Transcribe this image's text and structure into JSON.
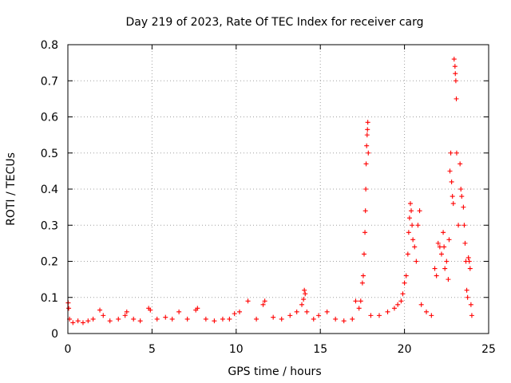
{
  "chart_data": {
    "type": "scatter",
    "title": "Day 219 of 2023, Rate Of TEC Index for receiver carg",
    "xlabel": "GPS time / hours",
    "ylabel": "ROTI / TECUs",
    "xlim": [
      0,
      25
    ],
    "ylim": [
      0,
      0.8
    ],
    "xticks": [
      0,
      5,
      10,
      15,
      20,
      25
    ],
    "yticks": [
      0,
      0.1,
      0.2,
      0.3,
      0.4,
      0.5,
      0.6,
      0.7,
      0.8
    ],
    "grid": true,
    "marker": "+",
    "color": "#ff0000",
    "series": [
      {
        "points": [
          [
            0.02,
            0.085
          ],
          [
            0.05,
            0.07
          ],
          [
            0.1,
            0.04
          ],
          [
            0.3,
            0.03
          ],
          [
            0.6,
            0.035
          ],
          [
            0.9,
            0.03
          ],
          [
            1.2,
            0.035
          ],
          [
            1.5,
            0.04
          ],
          [
            1.9,
            0.065
          ],
          [
            2.1,
            0.05
          ],
          [
            2.5,
            0.035
          ],
          [
            3.0,
            0.04
          ],
          [
            3.4,
            0.05
          ],
          [
            3.5,
            0.06
          ],
          [
            3.9,
            0.04
          ],
          [
            4.3,
            0.035
          ],
          [
            4.8,
            0.07
          ],
          [
            4.9,
            0.065
          ],
          [
            5.3,
            0.04
          ],
          [
            5.8,
            0.045
          ],
          [
            6.2,
            0.04
          ],
          [
            6.6,
            0.06
          ],
          [
            7.1,
            0.04
          ],
          [
            7.6,
            0.065
          ],
          [
            7.7,
            0.07
          ],
          [
            8.2,
            0.04
          ],
          [
            8.7,
            0.035
          ],
          [
            9.2,
            0.04
          ],
          [
            9.6,
            0.04
          ],
          [
            9.9,
            0.055
          ],
          [
            10.2,
            0.06
          ],
          [
            10.7,
            0.09
          ],
          [
            11.2,
            0.04
          ],
          [
            11.6,
            0.08
          ],
          [
            11.7,
            0.09
          ],
          [
            12.2,
            0.045
          ],
          [
            12.7,
            0.04
          ],
          [
            13.2,
            0.05
          ],
          [
            13.6,
            0.06
          ],
          [
            13.9,
            0.08
          ],
          [
            14.0,
            0.095
          ],
          [
            14.05,
            0.12
          ],
          [
            14.1,
            0.11
          ],
          [
            14.2,
            0.06
          ],
          [
            14.6,
            0.04
          ],
          [
            14.9,
            0.05
          ],
          [
            15.4,
            0.06
          ],
          [
            15.9,
            0.04
          ],
          [
            16.4,
            0.035
          ],
          [
            16.9,
            0.04
          ],
          [
            17.1,
            0.09
          ],
          [
            17.3,
            0.07
          ],
          [
            17.4,
            0.09
          ],
          [
            17.5,
            0.14
          ],
          [
            17.55,
            0.16
          ],
          [
            17.6,
            0.22
          ],
          [
            17.65,
            0.28
          ],
          [
            17.68,
            0.34
          ],
          [
            17.7,
            0.4
          ],
          [
            17.72,
            0.47
          ],
          [
            17.75,
            0.52
          ],
          [
            17.78,
            0.55
          ],
          [
            17.8,
            0.565
          ],
          [
            17.82,
            0.585
          ],
          [
            17.85,
            0.5
          ],
          [
            18.0,
            0.05
          ],
          [
            18.5,
            0.05
          ],
          [
            19.0,
            0.06
          ],
          [
            19.4,
            0.07
          ],
          [
            19.6,
            0.08
          ],
          [
            19.8,
            0.09
          ],
          [
            19.9,
            0.11
          ],
          [
            20.0,
            0.14
          ],
          [
            20.1,
            0.16
          ],
          [
            20.2,
            0.22
          ],
          [
            20.25,
            0.28
          ],
          [
            20.3,
            0.32
          ],
          [
            20.35,
            0.36
          ],
          [
            20.4,
            0.34
          ],
          [
            20.45,
            0.3
          ],
          [
            20.5,
            0.26
          ],
          [
            20.6,
            0.24
          ],
          [
            20.7,
            0.2
          ],
          [
            20.8,
            0.3
          ],
          [
            20.9,
            0.34
          ],
          [
            21.0,
            0.08
          ],
          [
            21.3,
            0.06
          ],
          [
            21.6,
            0.05
          ],
          [
            21.8,
            0.18
          ],
          [
            21.9,
            0.16
          ],
          [
            22.0,
            0.25
          ],
          [
            22.1,
            0.24
          ],
          [
            22.2,
            0.22
          ],
          [
            22.3,
            0.28
          ],
          [
            22.35,
            0.24
          ],
          [
            22.4,
            0.18
          ],
          [
            22.5,
            0.2
          ],
          [
            22.6,
            0.15
          ],
          [
            22.65,
            0.26
          ],
          [
            22.7,
            0.45
          ],
          [
            22.75,
            0.5
          ],
          [
            22.8,
            0.42
          ],
          [
            22.85,
            0.38
          ],
          [
            22.9,
            0.36
          ],
          [
            22.95,
            0.76
          ],
          [
            23.0,
            0.74
          ],
          [
            23.02,
            0.72
          ],
          [
            23.05,
            0.7
          ],
          [
            23.08,
            0.65
          ],
          [
            23.1,
            0.5
          ],
          [
            23.2,
            0.3
          ],
          [
            23.3,
            0.47
          ],
          [
            23.35,
            0.4
          ],
          [
            23.4,
            0.38
          ],
          [
            23.5,
            0.35
          ],
          [
            23.55,
            0.3
          ],
          [
            23.6,
            0.25
          ],
          [
            23.65,
            0.2
          ],
          [
            23.7,
            0.12
          ],
          [
            23.75,
            0.1
          ],
          [
            23.8,
            0.21
          ],
          [
            23.85,
            0.2
          ],
          [
            23.9,
            0.18
          ],
          [
            23.95,
            0.08
          ],
          [
            24.0,
            0.05
          ]
        ]
      }
    ]
  }
}
